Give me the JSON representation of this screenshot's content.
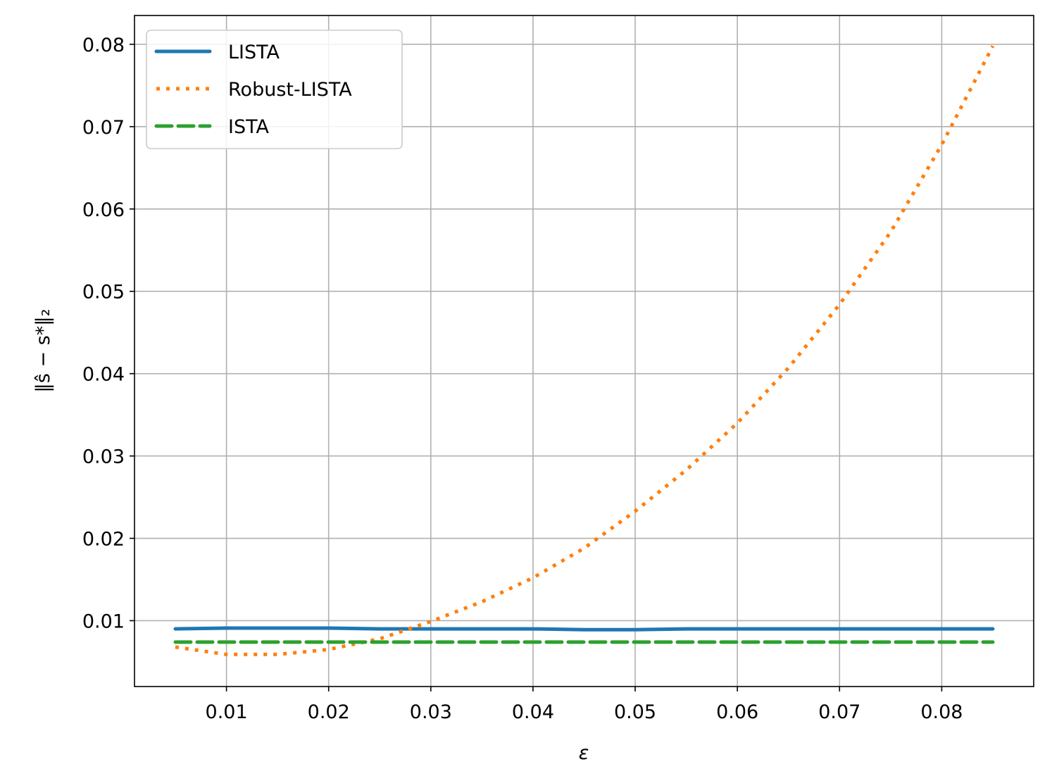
{
  "chart_data": {
    "type": "line",
    "xlabel": "ε",
    "ylabel": "‖ŝ − s*‖₂",
    "xlim": [
      0.001,
      0.089
    ],
    "ylim": [
      0.002,
      0.0835
    ],
    "xticks": [
      "0.01",
      "0.02",
      "0.03",
      "0.04",
      "0.05",
      "0.06",
      "0.07",
      "0.08"
    ],
    "yticks": [
      "0.01",
      "0.02",
      "0.03",
      "0.04",
      "0.05",
      "0.06",
      "0.07",
      "0.08"
    ],
    "grid": true,
    "legend_position": "top-left",
    "x": [
      0.005,
      0.01,
      0.015,
      0.02,
      0.025,
      0.03,
      0.035,
      0.04,
      0.045,
      0.05,
      0.055,
      0.06,
      0.065,
      0.07,
      0.075,
      0.08,
      0.085
    ],
    "series": [
      {
        "name": "LISTA",
        "color": "#1f77b4",
        "style": "solid",
        "values": [
          0.009,
          0.0091,
          0.0091,
          0.0091,
          0.009,
          0.009,
          0.009,
          0.009,
          0.0089,
          0.0089,
          0.009,
          0.009,
          0.009,
          0.009,
          0.009,
          0.009,
          0.009
        ]
      },
      {
        "name": "Robust-LISTA",
        "color": "#ff7f0e",
        "style": "dotted",
        "values": [
          0.0068,
          0.0059,
          0.0059,
          0.0065,
          0.0078,
          0.0099,
          0.0123,
          0.0152,
          0.0188,
          0.0233,
          0.0283,
          0.034,
          0.0407,
          0.0484,
          0.0572,
          0.0678,
          0.0798
        ]
      },
      {
        "name": "ISTA",
        "color": "#2ca02c",
        "style": "dashed",
        "values": [
          0.0074,
          0.0074,
          0.0074,
          0.0074,
          0.0074,
          0.0074,
          0.0074,
          0.0074,
          0.0074,
          0.0074,
          0.0074,
          0.0074,
          0.0074,
          0.0074,
          0.0074,
          0.0074,
          0.0074
        ]
      }
    ]
  }
}
